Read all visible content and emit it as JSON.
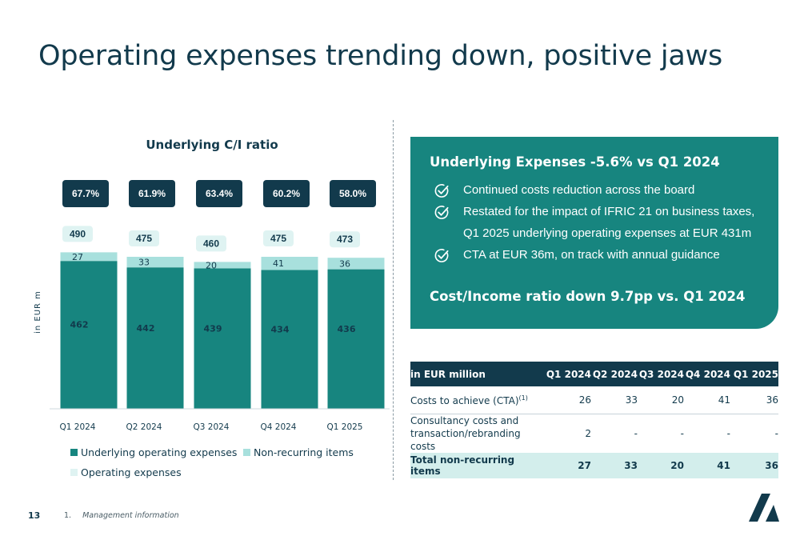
{
  "title": "Operating expenses trending down, positive jaws",
  "chart_data": {
    "type": "bar",
    "stacked": true,
    "title": "Underlying C/I ratio",
    "ylabel": "in EUR m",
    "categories": [
      "Q1 2024",
      "Q2 2024",
      "Q3 2024",
      "Q4 2024",
      "Q1 2025"
    ],
    "series": [
      {
        "name": "Underlying operating expenses",
        "values": [
          462,
          442,
          439,
          434,
          436
        ],
        "color": "#17857f"
      },
      {
        "name": "Non-recurring items",
        "values": [
          27,
          33,
          20,
          41,
          36
        ],
        "color": "#a8e0dd"
      }
    ],
    "totals": [
      490,
      475,
      460,
      475,
      473
    ],
    "ratios": [
      "67.7%",
      "61.9%",
      "63.4%",
      "60.2%",
      "58.0%"
    ],
    "ylim": [
      0,
      520
    ],
    "grid": false,
    "legend": [
      {
        "label": "Underlying operating expenses",
        "color": "#17857f"
      },
      {
        "label": "Non-recurring items",
        "color": "#a8e0dd"
      },
      {
        "label": "Operating expenses",
        "color": "#dff3f2"
      }
    ]
  },
  "panel": {
    "heading": "Underlying Expenses -5.6% vs Q1 2024",
    "bullets": [
      {
        "lines": [
          "Continued costs reduction across the board"
        ]
      },
      {
        "lines": [
          "Restated for the impact of IFRIC 21 on business taxes,",
          "Q1 2025 underlying operating expenses at EUR 431m"
        ]
      },
      {
        "lines": [
          "CTA at EUR 36m, on track with annual guidance"
        ]
      }
    ],
    "subheading": "Cost/Income ratio down 9.7pp vs. Q1 2024",
    "icon": "check-circle-icon",
    "color": "#17857f"
  },
  "table": {
    "headers": [
      "in EUR million",
      "Q1 2024",
      "Q2 2024",
      "Q3 2024",
      "Q4 2024",
      "Q1 2025"
    ],
    "rows": [
      {
        "label": "Costs to achieve (CTA)",
        "sup": "(1)",
        "values": [
          "26",
          "33",
          "20",
          "41",
          "36"
        ]
      },
      {
        "label_lines": [
          "Consultancy costs and",
          "transaction/rebranding costs"
        ],
        "values": [
          "2",
          "-",
          "-",
          "-",
          "-"
        ]
      },
      {
        "label": "Total non-recurring items",
        "values": [
          "27",
          "33",
          "20",
          "41",
          "36"
        ]
      }
    ]
  },
  "footer": {
    "page_number": "13",
    "footnote_number": "1.",
    "footnote_text": "Management information"
  },
  "colors": {
    "navy": "#123a4c",
    "teal": "#17857f",
    "light_teal": "#a8e0dd",
    "pale_teal": "#dff3f2"
  }
}
